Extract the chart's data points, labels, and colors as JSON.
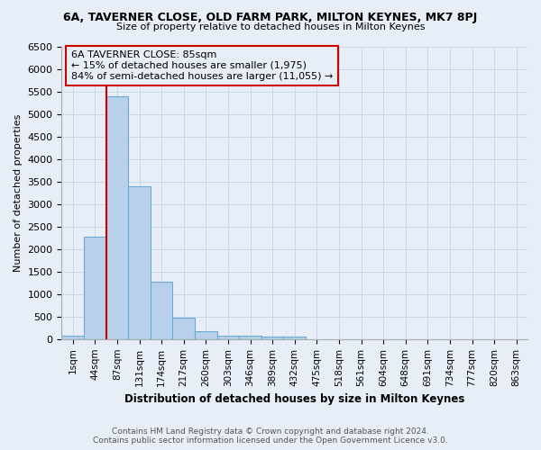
{
  "title": "6A, TAVERNER CLOSE, OLD FARM PARK, MILTON KEYNES, MK7 8PJ",
  "subtitle": "Size of property relative to detached houses in Milton Keynes",
  "xlabel": "Distribution of detached houses by size in Milton Keynes",
  "ylabel": "Number of detached properties",
  "footer_line1": "Contains HM Land Registry data © Crown copyright and database right 2024.",
  "footer_line2": "Contains public sector information licensed under the Open Government Licence v3.0.",
  "bin_labels": [
    "1sqm",
    "44sqm",
    "87sqm",
    "131sqm",
    "174sqm",
    "217sqm",
    "260sqm",
    "303sqm",
    "346sqm",
    "389sqm",
    "432sqm",
    "475sqm",
    "518sqm",
    "561sqm",
    "604sqm",
    "648sqm",
    "691sqm",
    "734sqm",
    "777sqm",
    "820sqm",
    "863sqm"
  ],
  "bar_heights": [
    75,
    2275,
    5400,
    3400,
    1275,
    470,
    185,
    85,
    70,
    55,
    55,
    0,
    0,
    0,
    0,
    0,
    0,
    0,
    0,
    0,
    0
  ],
  "bar_color": "#b8d0ea",
  "bar_edge_color": "#6aaad4",
  "grid_color": "#c8d8e8",
  "bg_color": "#e8eef8",
  "annotation_box_color": "#cc0000",
  "annotation_text": "6A TAVERNER CLOSE: 85sqm\n← 15% of detached houses are smaller (1,975)\n84% of semi-detached houses are larger (11,055) →",
  "vline_color": "#cc0000",
  "ylim": [
    0,
    6500
  ],
  "yticks": [
    0,
    500,
    1000,
    1500,
    2000,
    2500,
    3000,
    3500,
    4000,
    4500,
    5000,
    5500,
    6000,
    6500
  ]
}
